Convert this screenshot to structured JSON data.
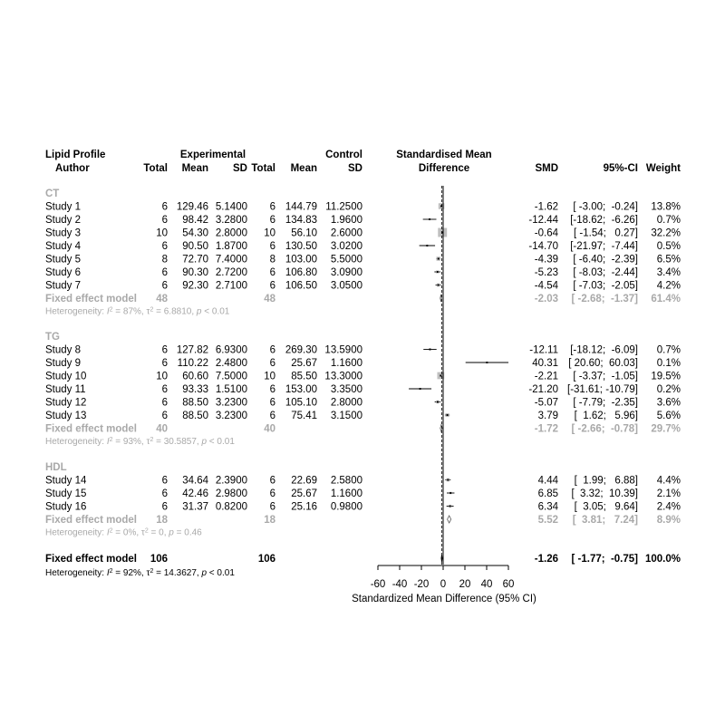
{
  "headers": {
    "line1": [
      "Lipid Profile",
      "Experimental",
      "Control",
      "Standardised Mean"
    ],
    "line2": [
      "Author",
      "Total",
      "Mean",
      "SD",
      "Total",
      "Mean",
      "SD",
      "Difference",
      "SMD",
      "95%-CI",
      "Weight"
    ]
  },
  "colors": {
    "primary": "#000000",
    "subgroup": "#a9a9a9",
    "square": "#bfbfbf"
  },
  "chart_data": {
    "type": "forest",
    "xlabel": "Standardized Mean Difference (95% CI)",
    "xlim": [
      -60,
      60
    ],
    "xticks": [
      -60,
      -40,
      -20,
      0,
      20,
      40,
      60
    ],
    "groups": [
      {
        "name": "CT",
        "studies": [
          {
            "author": "Study 1",
            "e_total": "6",
            "e_mean": "129.46",
            "e_sd": "5.1400",
            "c_total": "6",
            "c_mean": "144.79",
            "c_sd": "11.2500",
            "smd": -1.62,
            "lower": -3.0,
            "upper": -0.24,
            "smd_text": "-1.62",
            "ci_text": "[ -3.00;  -0.24]",
            "weight": "13.8%",
            "w": 13.8
          },
          {
            "author": "Study 2",
            "e_total": "6",
            "e_mean": "98.42",
            "e_sd": "3.2800",
            "c_total": "6",
            "c_mean": "134.83",
            "c_sd": "1.9600",
            "smd": -12.44,
            "lower": -18.62,
            "upper": -6.26,
            "smd_text": "-12.44",
            "ci_text": "[-18.62;  -6.26]",
            "weight": "0.7%",
            "w": 0.7
          },
          {
            "author": "Study 3",
            "e_total": "10",
            "e_mean": "54.30",
            "e_sd": "2.8000",
            "c_total": "10",
            "c_mean": "56.10",
            "c_sd": "2.6000",
            "smd": -0.64,
            "lower": -1.54,
            "upper": 0.27,
            "smd_text": "-0.64",
            "ci_text": "[ -1.54;   0.27]",
            "weight": "32.2%",
            "w": 32.2
          },
          {
            "author": "Study 4",
            "e_total": "6",
            "e_mean": "90.50",
            "e_sd": "1.8700",
            "c_total": "6",
            "c_mean": "130.50",
            "c_sd": "3.0200",
            "smd": -14.7,
            "lower": -21.97,
            "upper": -7.44,
            "smd_text": "-14.70",
            "ci_text": "[-21.97;  -7.44]",
            "weight": "0.5%",
            "w": 0.5
          },
          {
            "author": "Study 5",
            "e_total": "8",
            "e_mean": "72.70",
            "e_sd": "7.4000",
            "c_total": "8",
            "c_mean": "103.00",
            "c_sd": "5.5000",
            "smd": -4.39,
            "lower": -6.4,
            "upper": -2.39,
            "smd_text": "-4.39",
            "ci_text": "[ -6.40;  -2.39]",
            "weight": "6.5%",
            "w": 6.5
          },
          {
            "author": "Study 6",
            "e_total": "6",
            "e_mean": "90.30",
            "e_sd": "2.7200",
            "c_total": "6",
            "c_mean": "106.80",
            "c_sd": "3.0900",
            "smd": -5.23,
            "lower": -8.03,
            "upper": -2.44,
            "smd_text": "-5.23",
            "ci_text": "[ -8.03;  -2.44]",
            "weight": "3.4%",
            "w": 3.4
          },
          {
            "author": "Study 7",
            "e_total": "6",
            "e_mean": "92.30",
            "e_sd": "2.7100",
            "c_total": "6",
            "c_mean": "106.50",
            "c_sd": "3.0500",
            "smd": -4.54,
            "lower": -7.03,
            "upper": -2.05,
            "smd_text": "-4.54",
            "ci_text": "[ -7.03;  -2.05]",
            "weight": "4.2%",
            "w": 4.2
          }
        ],
        "fixed": {
          "label": "Fixed effect model",
          "e_total": "48",
          "c_total": "48",
          "smd": -2.03,
          "lower": -2.68,
          "upper": -1.37,
          "smd_text": "-2.03",
          "ci_text": "[ -2.68;  -1.37]",
          "weight": "61.4%"
        },
        "heterogeneity": {
          "prefix": "Heterogeneity: ",
          "i2": "87%",
          "tau2": "6.8810",
          "p": "0.01"
        }
      },
      {
        "name": "TG",
        "studies": [
          {
            "author": "Study 8",
            "e_total": "6",
            "e_mean": "127.82",
            "e_sd": "6.9300",
            "c_total": "6",
            "c_mean": "269.30",
            "c_sd": "13.5900",
            "smd": -12.11,
            "lower": -18.12,
            "upper": -6.09,
            "smd_text": "-12.11",
            "ci_text": "[-18.12;  -6.09]",
            "weight": "0.7%",
            "w": 0.7
          },
          {
            "author": "Study 9",
            "e_total": "6",
            "e_mean": "110.22",
            "e_sd": "2.4800",
            "c_total": "6",
            "c_mean": "25.67",
            "c_sd": "1.1600",
            "smd": 40.31,
            "lower": 20.6,
            "upper": 60.03,
            "smd_text": "40.31",
            "ci_text": "[ 20.60;  60.03]",
            "weight": "0.1%",
            "w": 0.1
          },
          {
            "author": "Study 10",
            "e_total": "10",
            "e_mean": "60.60",
            "e_sd": "7.5000",
            "c_total": "10",
            "c_mean": "85.50",
            "c_sd": "13.3000",
            "smd": -2.21,
            "lower": -3.37,
            "upper": -1.05,
            "smd_text": "-2.21",
            "ci_text": "[ -3.37;  -1.05]",
            "weight": "19.5%",
            "w": 19.5
          },
          {
            "author": "Study 11",
            "e_total": "6",
            "e_mean": "93.33",
            "e_sd": "1.5100",
            "c_total": "6",
            "c_mean": "153.00",
            "c_sd": "3.3500",
            "smd": -21.2,
            "lower": -31.61,
            "upper": -10.79,
            "smd_text": "-21.20",
            "ci_text": "[-31.61; -10.79]",
            "weight": "0.2%",
            "w": 0.2
          },
          {
            "author": "Study 12",
            "e_total": "6",
            "e_mean": "88.50",
            "e_sd": "3.2300",
            "c_total": "6",
            "c_mean": "105.10",
            "c_sd": "2.8000",
            "smd": -5.07,
            "lower": -7.79,
            "upper": -2.35,
            "smd_text": "-5.07",
            "ci_text": "[ -7.79;  -2.35]",
            "weight": "3.6%",
            "w": 3.6
          },
          {
            "author": "Study 13",
            "e_total": "6",
            "e_mean": "88.50",
            "e_sd": "3.2300",
            "c_total": "6",
            "c_mean": "75.41",
            "c_sd": "3.1500",
            "smd": 3.79,
            "lower": 1.62,
            "upper": 5.96,
            "smd_text": "3.79",
            "ci_text": "[  1.62;   5.96]",
            "weight": "5.6%",
            "w": 5.6
          }
        ],
        "fixed": {
          "label": "Fixed effect model",
          "e_total": "40",
          "c_total": "40",
          "smd": -1.72,
          "lower": -2.66,
          "upper": -0.78,
          "smd_text": "-1.72",
          "ci_text": "[ -2.66;  -0.78]",
          "weight": "29.7%"
        },
        "heterogeneity": {
          "prefix": "Heterogeneity: ",
          "i2": "93%",
          "tau2": "30.5857",
          "p": "0.01"
        }
      },
      {
        "name": "HDL",
        "studies": [
          {
            "author": "Study 14",
            "e_total": "6",
            "e_mean": "34.64",
            "e_sd": "2.3900",
            "c_total": "6",
            "c_mean": "22.69",
            "c_sd": "2.5800",
            "smd": 4.44,
            "lower": 1.99,
            "upper": 6.88,
            "smd_text": "4.44",
            "ci_text": "[  1.99;   6.88]",
            "weight": "4.4%",
            "w": 4.4
          },
          {
            "author": "Study 15",
            "e_total": "6",
            "e_mean": "42.46",
            "e_sd": "2.9800",
            "c_total": "6",
            "c_mean": "25.67",
            "c_sd": "1.1600",
            "smd": 6.85,
            "lower": 3.32,
            "upper": 10.39,
            "smd_text": "6.85",
            "ci_text": "[  3.32;  10.39]",
            "weight": "2.1%",
            "w": 2.1
          },
          {
            "author": "Study 16",
            "e_total": "6",
            "e_mean": "31.37",
            "e_sd": "0.8200",
            "c_total": "6",
            "c_mean": "25.16",
            "c_sd": "0.9800",
            "smd": 6.34,
            "lower": 3.05,
            "upper": 9.64,
            "smd_text": "6.34",
            "ci_text": "[  3.05;   9.64]",
            "weight": "2.4%",
            "w": 2.4
          }
        ],
        "fixed": {
          "label": "Fixed effect model",
          "e_total": "18",
          "c_total": "18",
          "smd": 5.52,
          "lower": 3.81,
          "upper": 7.24,
          "smd_text": "5.52",
          "ci_text": "[  3.81;   7.24]",
          "weight": "8.9%"
        },
        "heterogeneity": {
          "prefix": "Heterogeneity: ",
          "i2": "0%",
          "tau2": "0",
          "p": "0.46",
          "p_op": "="
        }
      }
    ],
    "overall": {
      "label": "Fixed effect model",
      "e_total": "106",
      "c_total": "106",
      "smd": -1.26,
      "lower": -1.77,
      "upper": -0.75,
      "smd_text": "-1.26",
      "ci_text": "[ -1.77;  -0.75]",
      "weight": "100.0%",
      "heterogeneity": {
        "prefix": "Heterogeneity: ",
        "i2": "92%",
        "tau2": "14.3627",
        "p": "0.01"
      }
    }
  }
}
